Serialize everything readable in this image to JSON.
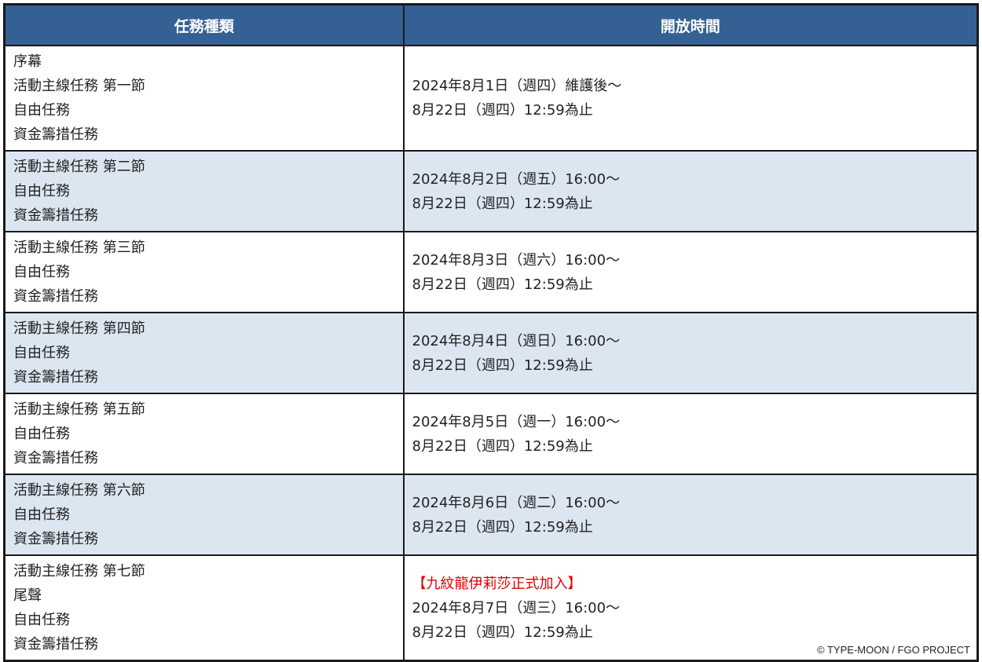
{
  "headers": [
    "任務種類",
    "開放時間"
  ],
  "rows": [
    {
      "types": [
        "序幕",
        "活動主線任務 第一節",
        "自由任務",
        "資金籌措任務"
      ],
      "note": "",
      "time": [
        "2024年8月1日（週四）維護後～",
        "8月22日（週四）12:59為止"
      ]
    },
    {
      "types": [
        "活動主線任務 第二節",
        "自由任務",
        "資金籌措任務"
      ],
      "note": "",
      "time": [
        "2024年8月2日（週五）16:00～",
        "8月22日（週四）12:59為止"
      ]
    },
    {
      "types": [
        "活動主線任務 第三節",
        "自由任務",
        "資金籌措任務"
      ],
      "note": "",
      "time": [
        "2024年8月3日（週六）16:00～",
        "8月22日（週四）12:59為止"
      ]
    },
    {
      "types": [
        "活動主線任務 第四節",
        "自由任務",
        "資金籌措任務"
      ],
      "note": "",
      "time": [
        "2024年8月4日（週日）16:00～",
        "8月22日（週四）12:59為止"
      ]
    },
    {
      "types": [
        "活動主線任務 第五節",
        "自由任務",
        "資金籌措任務"
      ],
      "note": "",
      "time": [
        "2024年8月5日（週一）16:00～",
        "8月22日（週四）12:59為止"
      ]
    },
    {
      "types": [
        "活動主線任務 第六節",
        "自由任務",
        "資金籌措任務"
      ],
      "note": "",
      "time": [
        "2024年8月6日（週二）16:00～",
        "8月22日（週四）12:59為止"
      ]
    },
    {
      "types": [
        "活動主線任務 第七節",
        "尾聲",
        "自由任務",
        "資金籌措任務"
      ],
      "note": "【九紋龍伊莉莎正式加入】",
      "time": [
        "2024年8月7日（週三）16:00～",
        "8月22日（週四）12:59為止"
      ]
    }
  ],
  "copyright": "© TYPE-MOON / FGO PROJECT",
  "colors": {
    "header_bg": "#356093",
    "alt_row_bg": "#dce6f1",
    "note": "#e00000"
  }
}
